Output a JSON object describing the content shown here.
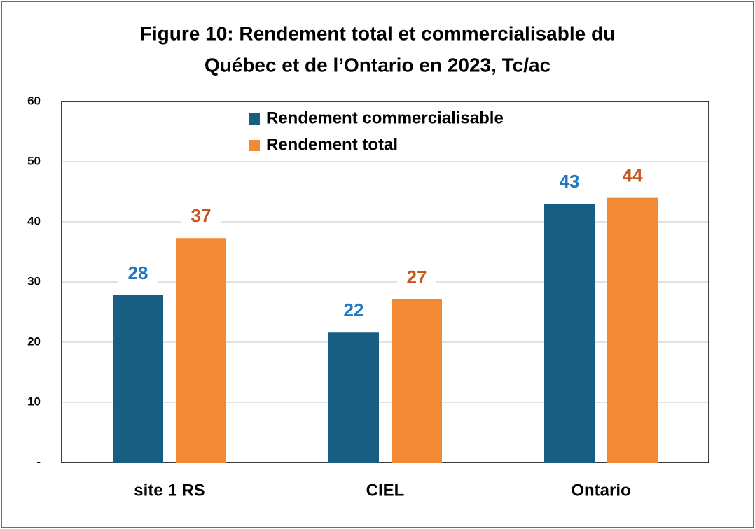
{
  "chart_data": {
    "type": "bar",
    "title": [
      "Figure 10: Rendement total et commercialisable du",
      "Québec et de l’Ontario en 2023, Tc/ac"
    ],
    "categories": [
      "site 1 RS",
      "CIEL",
      "Ontario"
    ],
    "series": [
      {
        "name": "Rendement commercialisable",
        "color": "#175e82",
        "label_color": "#1f78c1",
        "values": [
          27.8,
          21.6,
          43
        ],
        "value_labels": [
          "28",
          "22",
          "43"
        ]
      },
      {
        "name": "Rendement total",
        "color": "#f28a35",
        "label_color": "#c4561c",
        "values": [
          37.3,
          27.1,
          44
        ],
        "value_labels": [
          "37",
          "27",
          "44"
        ]
      }
    ],
    "ylim": [
      0,
      60
    ],
    "yticks": [
      {
        "value": 0,
        "label": "-"
      },
      10,
      20,
      30,
      40,
      50,
      60
    ],
    "grid": true,
    "legend": "top"
  }
}
